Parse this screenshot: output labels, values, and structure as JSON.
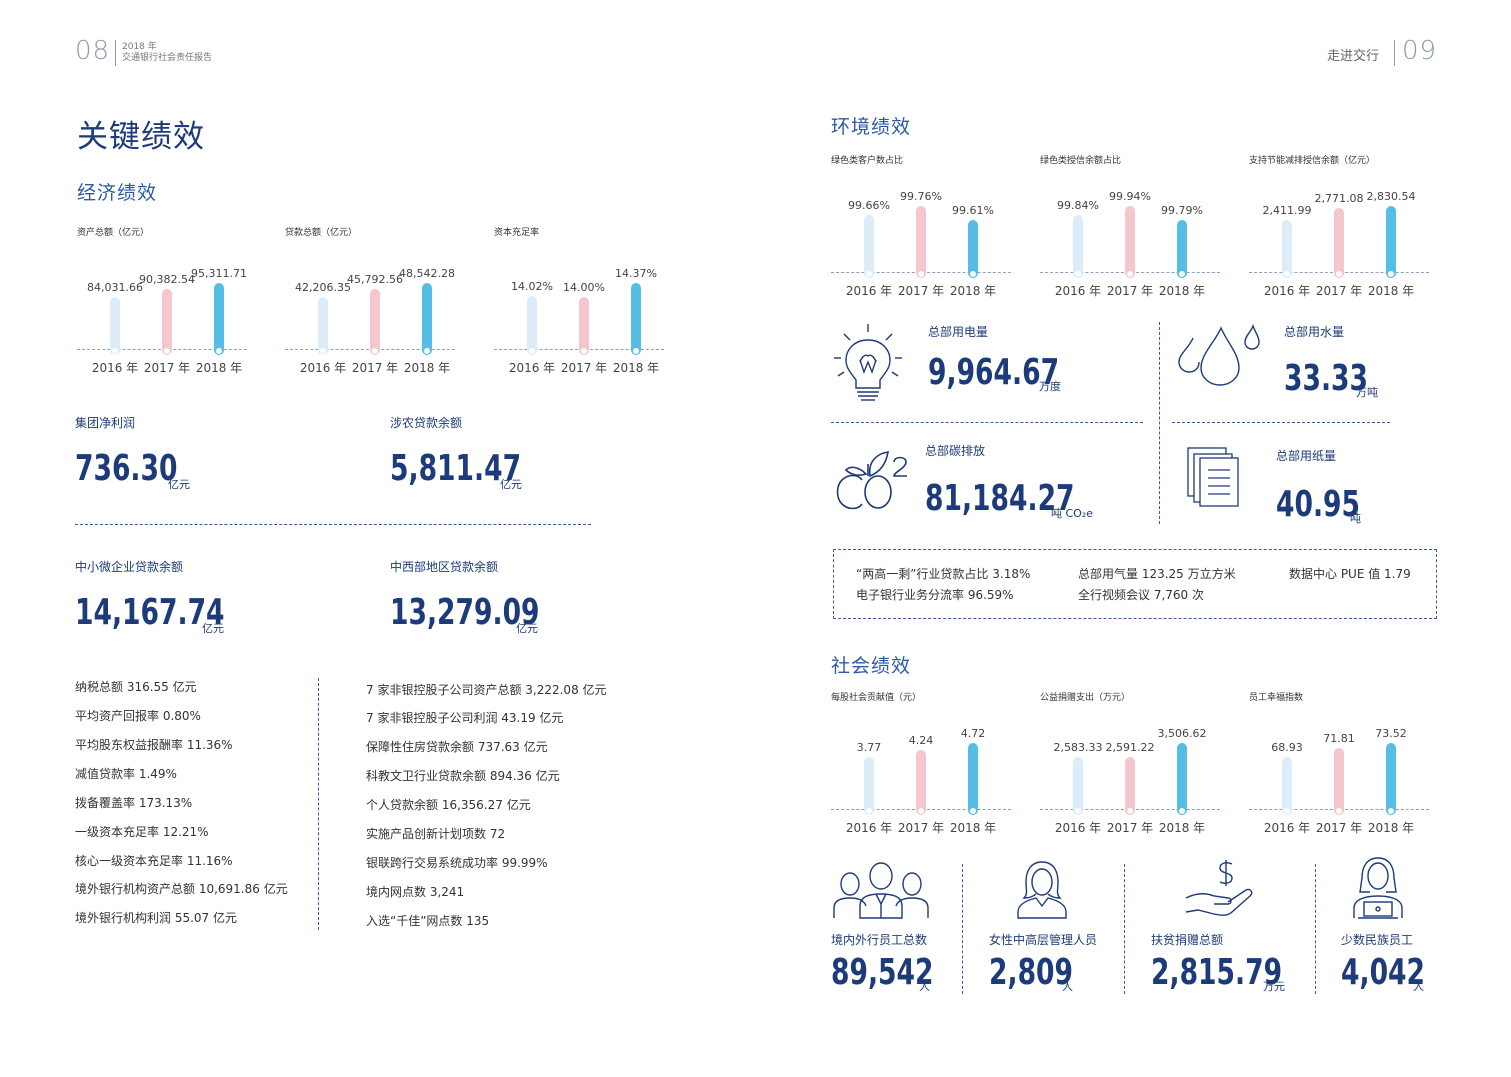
{
  "header": {
    "left_page": "08",
    "left_year": "2018 年",
    "left_report": "交通银行社会责任报告",
    "right_section": "走进交行",
    "right_page": "09"
  },
  "left": {
    "title": "关键绩效",
    "economic_heading": "经济绩效",
    "kpis": {
      "net_profit": {
        "label": "集团净利润",
        "value": "736.30",
        "unit": "亿元"
      },
      "agri_loans": {
        "label": "涉农贷款余额",
        "value": "5,811.47",
        "unit": "亿元"
      },
      "sme_loans": {
        "label": "中小微企业贷款余额",
        "value": "14,167.74",
        "unit": "亿元"
      },
      "midwest_loans": {
        "label": "中西部地区贷款余额",
        "value": "13,279.09",
        "unit": "亿元"
      }
    },
    "stats_left": [
      "纳税总额 316.55 亿元",
      "平均资产回报率 0.80%",
      "平均股东权益报酬率 11.36%",
      "减值贷款率 1.49%",
      "拨备覆盖率 173.13%",
      "一级资本充足率 12.21%",
      "核心一级资本充足率 11.16%",
      "境外银行机构资产总额 10,691.86 亿元",
      "境外银行机构利润 55.07 亿元"
    ],
    "stats_right": [
      "7 家非银控股子公司资产总额 3,222.08 亿元",
      "7 家非银控股子公司利润 43.19 亿元",
      "保障性住房贷款余额 737.63 亿元",
      "科教文卫行业贷款余额 894.36 亿元",
      "个人贷款余额 16,356.27 亿元",
      "实施产品创新计划项数 72",
      "银联跨行交易系统成功率 99.99%",
      "境内网点数 3,241",
      "入选“千佳”网点数 135"
    ]
  },
  "right": {
    "env_heading": "环境绩效",
    "env_kpis": {
      "electricity": {
        "label": "总部用电量",
        "value": "9,964.67",
        "unit": "万度"
      },
      "water": {
        "label": "总部用水量",
        "value": "33.33",
        "unit": "万吨"
      },
      "carbon": {
        "label": "总部碳排放",
        "value": "81,184.27",
        "unit": "吨 CO₂e"
      },
      "paper": {
        "label": "总部用纸量",
        "value": "40.95",
        "unit": "吨"
      }
    },
    "env_box": [
      "“两高一剩”行业贷款占比 3.18%",
      "总部用气量 123.25 万立方米",
      "数据中心 PUE 值 1.79",
      "电子银行业务分流率 96.59%",
      "全行视频会议 7,760 次"
    ],
    "social_heading": "社会绩效",
    "social_kpis": [
      {
        "label": "境内外行员工总数",
        "value": "89,542",
        "unit": "人",
        "icon": "group-people-icon"
      },
      {
        "label": "女性中高层管理人员",
        "value": "2,809",
        "unit": "人",
        "icon": "woman-icon"
      },
      {
        "label": "扶贫捐赠总额",
        "value": "2,815.79",
        "unit": "万元",
        "icon": "hand-dollar-icon"
      },
      {
        "label": "少数民族员工",
        "value": "4,042",
        "unit": "人",
        "icon": "ethnic-employee-icon"
      }
    ]
  },
  "colors": {
    "bar2016": "#dcedf9",
    "bar2017": "#f5c6cc",
    "bar2018": "#56bde4",
    "navy": "#1d3a7a"
  },
  "chart_data": [
    {
      "type": "bar",
      "title": "资产总额（亿元）",
      "categories": [
        "2016 年",
        "2017 年",
        "2018 年"
      ],
      "values": [
        84031.66,
        90382.54,
        95311.71
      ],
      "labels": [
        "84,031.66",
        "90,382.54",
        "95,311.71"
      ]
    },
    {
      "type": "bar",
      "title": "贷款总额（亿元）",
      "categories": [
        "2016 年",
        "2017 年",
        "2018 年"
      ],
      "values": [
        42206.35,
        45792.56,
        48542.28
      ],
      "labels": [
        "42,206.35",
        "45,792.56",
        "48,542.28"
      ]
    },
    {
      "type": "bar",
      "title": "资本充足率",
      "categories": [
        "2016 年",
        "2017 年",
        "2018 年"
      ],
      "values": [
        14.02,
        14.0,
        14.37
      ],
      "labels": [
        "14.02%",
        "14.00%",
        "14.37%"
      ]
    },
    {
      "type": "bar",
      "title": "绿色类客户数占比",
      "categories": [
        "2016 年",
        "2017 年",
        "2018 年"
      ],
      "values": [
        99.66,
        99.76,
        99.61
      ],
      "labels": [
        "99.66%",
        "99.76%",
        "99.61%"
      ]
    },
    {
      "type": "bar",
      "title": "绿色类授信余额占比",
      "categories": [
        "2016 年",
        "2017 年",
        "2018 年"
      ],
      "values": [
        99.84,
        99.94,
        99.79
      ],
      "labels": [
        "99.84%",
        "99.94%",
        "99.79%"
      ]
    },
    {
      "type": "bar",
      "title": "支持节能减排授信余额（亿元）",
      "categories": [
        "2016 年",
        "2017 年",
        "2018 年"
      ],
      "values": [
        2411.99,
        2771.08,
        2830.54
      ],
      "labels": [
        "2,411.99",
        "2,771.08",
        "2,830.54"
      ]
    },
    {
      "type": "bar",
      "title": "每股社会贡献值（元）",
      "categories": [
        "2016 年",
        "2017 年",
        "2018 年"
      ],
      "values": [
        3.77,
        4.24,
        4.72
      ],
      "labels": [
        "3.77",
        "4.24",
        "4.72"
      ]
    },
    {
      "type": "bar",
      "title": "公益捐赠支出（万元）",
      "categories": [
        "2016 年",
        "2017 年",
        "2018 年"
      ],
      "values": [
        2583.33,
        2591.22,
        3506.62
      ],
      "labels": [
        "2,583.33",
        "2,591.22",
        "3,506.62"
      ]
    },
    {
      "type": "bar",
      "title": "员工幸福指数",
      "categories": [
        "2016 年",
        "2017 年",
        "2018 年"
      ],
      "values": [
        68.93,
        71.81,
        73.52
      ],
      "labels": [
        "68.93",
        "71.81",
        "73.52"
      ]
    }
  ]
}
